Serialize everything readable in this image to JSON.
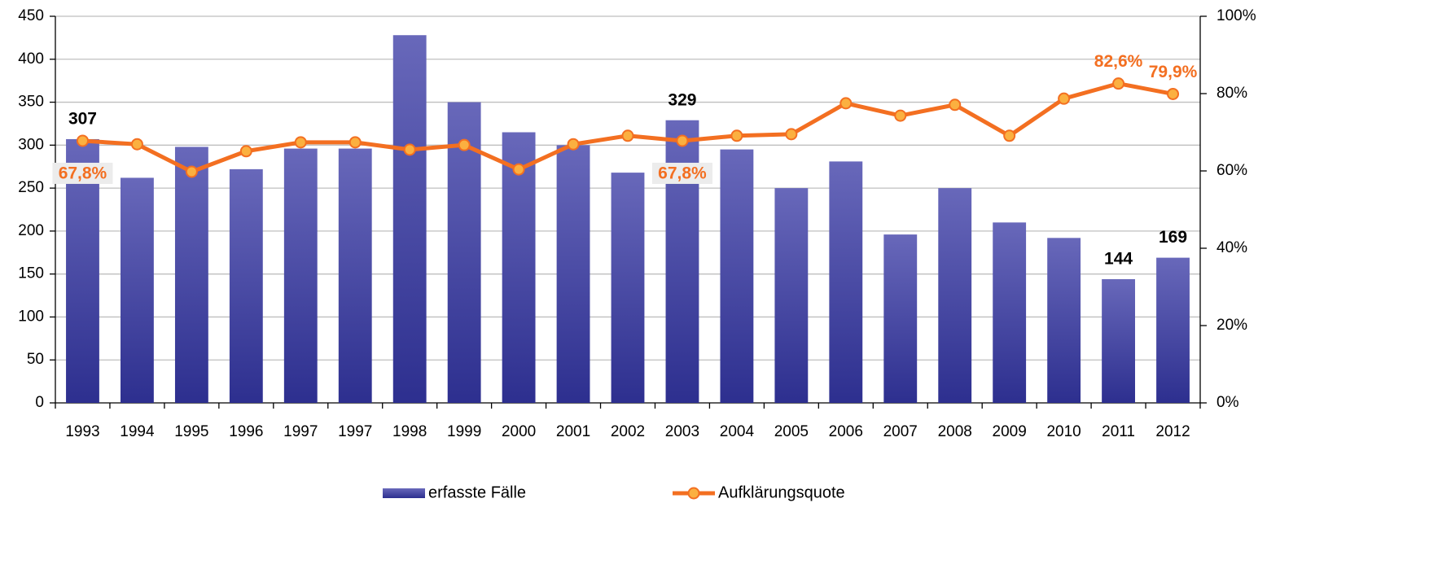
{
  "chart_data": {
    "type": "bar-line",
    "categories": [
      "1993",
      "1994",
      "1995",
      "1996",
      "1997",
      "1997",
      "1998",
      "1999",
      "2000",
      "2001",
      "2002",
      "2003",
      "2004",
      "2005",
      "2006",
      "2007",
      "2008",
      "2009",
      "2010",
      "2011",
      "2012"
    ],
    "series": [
      {
        "name": "erfasste Fälle",
        "type": "bar",
        "color": "#3a3c9a",
        "values": [
          307,
          262,
          298,
          272,
          296,
          296,
          428,
          350,
          315,
          300,
          268,
          329,
          295,
          250,
          281,
          196,
          250,
          210,
          192,
          144,
          169
        ],
        "value_labels": [
          "307",
          null,
          null,
          null,
          null,
          null,
          null,
          null,
          null,
          null,
          null,
          "329",
          null,
          null,
          null,
          null,
          null,
          null,
          null,
          "144",
          "169"
        ]
      },
      {
        "name": "Aufklärungsquote",
        "type": "line",
        "axis": "y2",
        "color": "#f36f21",
        "values": [
          67.8,
          66.9,
          59.8,
          65.1,
          67.4,
          67.4,
          65.5,
          66.7,
          60.4,
          66.9,
          69.1,
          67.8,
          69.1,
          69.5,
          77.5,
          74.3,
          77.1,
          69.1,
          78.7,
          82.6,
          79.9
        ],
        "value_labels": [
          "67,8%",
          null,
          null,
          null,
          null,
          null,
          null,
          null,
          null,
          null,
          null,
          "67,8%",
          null,
          null,
          null,
          null,
          null,
          null,
          null,
          "82,6%",
          "79,9%"
        ]
      }
    ],
    "ylim": [
      0,
      450
    ],
    "yticks": [
      0,
      50,
      100,
      150,
      200,
      250,
      300,
      350,
      400,
      450
    ],
    "y2lim": [
      0,
      100
    ],
    "y2ticks": [
      {
        "value": 0,
        "label": "0%"
      },
      {
        "value": 20,
        "label": "20%"
      },
      {
        "value": 40,
        "label": "40%"
      },
      {
        "value": 60,
        "label": "60%"
      },
      {
        "value": 80,
        "label": "80%"
      },
      {
        "value": 100,
        "label": "100%"
      }
    ],
    "grid": true,
    "legend": "bottom"
  }
}
